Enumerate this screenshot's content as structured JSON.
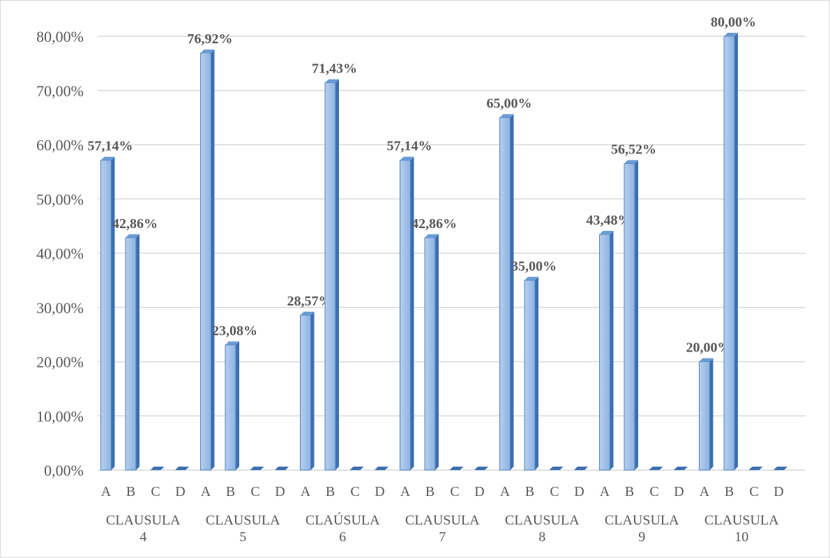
{
  "chart_data": {
    "type": "bar",
    "title": "",
    "xlabel": "",
    "ylabel": "",
    "ylim": [
      0,
      0.8
    ],
    "y_ticks": [
      "0,00%",
      "10,00%",
      "20,00%",
      "30,00%",
      "40,00%",
      "50,00%",
      "60,00%",
      "70,00%",
      "80,00%"
    ],
    "grid": true,
    "legend": "none",
    "colors": {
      "bar_front": "#8db3e2",
      "bar_side": "#3c70b0",
      "bar_top": "#6a9bd6",
      "grid": "#d9d9d9",
      "text": "#595959"
    },
    "categories": [
      "A",
      "B",
      "C",
      "D"
    ],
    "groups": [
      {
        "line1": "CLAUSULA",
        "line2": "4",
        "values": [
          0.5714,
          0.4286,
          0,
          0
        ],
        "labels": [
          "57,14%",
          "42,86%",
          "",
          ""
        ]
      },
      {
        "line1": "CLAUSULA",
        "line2": "5",
        "values": [
          0.7692,
          0.2308,
          0,
          0
        ],
        "labels": [
          "76,92%",
          "23,08%",
          "",
          ""
        ]
      },
      {
        "line1": "CLAÚSULA",
        "line2": "6",
        "values": [
          0.2857,
          0.7143,
          0,
          0
        ],
        "labels": [
          "28,57%",
          "71,43%",
          "",
          ""
        ]
      },
      {
        "line1": "CLAUSULA",
        "line2": "7",
        "values": [
          0.5714,
          0.4286,
          0,
          0
        ],
        "labels": [
          "57,14%",
          "42,86%",
          "",
          ""
        ]
      },
      {
        "line1": "CLAUSULA",
        "line2": "8",
        "values": [
          0.65,
          0.35,
          0,
          0
        ],
        "labels": [
          "65,00%",
          "35,00%",
          "",
          ""
        ]
      },
      {
        "line1": "CLAUSULA",
        "line2": "9",
        "values": [
          0.4348,
          0.5652,
          0,
          0
        ],
        "labels": [
          "43,48%",
          "56,52%",
          "",
          ""
        ]
      },
      {
        "line1": "CLAUSULA",
        "line2": "10",
        "values": [
          0.2,
          0.8,
          0,
          0
        ],
        "labels": [
          "20,00%",
          "80,00%",
          "",
          ""
        ]
      }
    ]
  }
}
